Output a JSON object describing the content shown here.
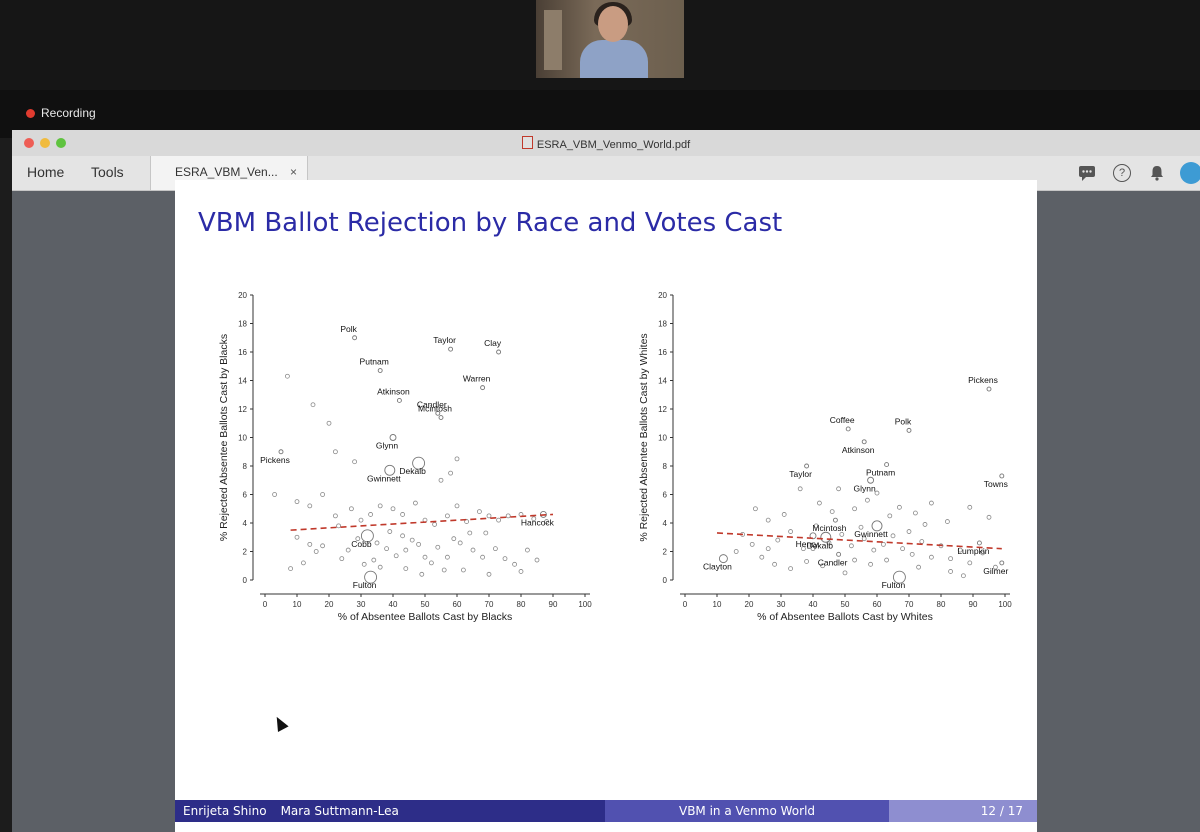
{
  "zoom": {
    "recording_label": "Recording"
  },
  "window": {
    "doc_title": "ESRA_VBM_Venmo_World.pdf",
    "menu": {
      "home": "Home",
      "tools": "Tools"
    },
    "tab": {
      "label": "ESRA_VBM_Ven...",
      "close": "×"
    },
    "icons": [
      "comment-icon",
      "help-icon",
      "bell-icon",
      "avatar"
    ]
  },
  "slide": {
    "title": "VBM Ballot Rejection by Race and Votes Cast",
    "footer": {
      "author1": "Enrijeta Shino",
      "author2": "Mara Suttmann-Lea",
      "center": "VBM in a Venmo World",
      "page": "12 / 17"
    }
  },
  "colors": {
    "title": "#2b2ba6",
    "footer_dark": "#2d2d88",
    "footer_mid": "#5151b0",
    "footer_light": "#8e8ed0",
    "trend": "#c0392b"
  },
  "chart_data": [
    {
      "type": "scatter",
      "title": "",
      "xlabel": "% of Absentee Ballots Cast by Blacks",
      "ylabel": "% Rejected Absentee Ballots Cast by Blacks",
      "xlim": [
        0,
        100
      ],
      "ylim": [
        0,
        20
      ],
      "xticks": [
        0,
        10,
        20,
        30,
        40,
        50,
        60,
        70,
        80,
        90,
        100
      ],
      "yticks": [
        0,
        2,
        4,
        6,
        8,
        10,
        12,
        14,
        16,
        18,
        20
      ],
      "trend": {
        "x": [
          8,
          90
        ],
        "y": [
          3.5,
          4.6
        ]
      },
      "labeled_points": [
        {
          "label": "Polk",
          "x": 28,
          "y": 17,
          "s": 2
        },
        {
          "label": "Taylor",
          "x": 58,
          "y": 16.2,
          "s": 2
        },
        {
          "label": "Clay",
          "x": 73,
          "y": 16,
          "s": 2
        },
        {
          "label": "Putnam",
          "x": 36,
          "y": 14.7,
          "s": 2
        },
        {
          "label": "Atkinson",
          "x": 42,
          "y": 12.6,
          "s": 2
        },
        {
          "label": "Warren",
          "x": 68,
          "y": 13.5,
          "s": 2
        },
        {
          "label": "Candler",
          "x": 54,
          "y": 11.7,
          "s": 2
        },
        {
          "label": "Mcintosh",
          "x": 55,
          "y": 11.4,
          "s": 2
        },
        {
          "label": "Glynn",
          "x": 40,
          "y": 10,
          "s": 3
        },
        {
          "label": "Pickens",
          "x": 5,
          "y": 9,
          "s": 2
        },
        {
          "label": "Gwinnett",
          "x": 39,
          "y": 7.7,
          "s": 5
        },
        {
          "label": "Dekalb",
          "x": 48,
          "y": 8.2,
          "s": 6
        },
        {
          "label": "Hancock",
          "x": 87,
          "y": 4.6,
          "s": 3
        },
        {
          "label": "Cobb",
          "x": 32,
          "y": 3.1,
          "s": 6
        },
        {
          "label": "Fulton",
          "x": 33,
          "y": 0.2,
          "s": 6
        }
      ],
      "points": [
        [
          7,
          14.3
        ],
        [
          15,
          12.3
        ],
        [
          20,
          11
        ],
        [
          22,
          9
        ],
        [
          28,
          8.3
        ],
        [
          55,
          7
        ],
        [
          60,
          8.5
        ],
        [
          58,
          7.5
        ],
        [
          18,
          6
        ],
        [
          3,
          6
        ],
        [
          10,
          5.5
        ],
        [
          14,
          5.2
        ],
        [
          22,
          4.5
        ],
        [
          27,
          5
        ],
        [
          30,
          4.2
        ],
        [
          33,
          4.6
        ],
        [
          36,
          5.2
        ],
        [
          40,
          5
        ],
        [
          43,
          4.6
        ],
        [
          47,
          5.4
        ],
        [
          50,
          4.2
        ],
        [
          53,
          3.9
        ],
        [
          57,
          4.5
        ],
        [
          60,
          5.2
        ],
        [
          63,
          4.1
        ],
        [
          67,
          4.8
        ],
        [
          70,
          4.5
        ],
        [
          73,
          4.2
        ],
        [
          76,
          4.5
        ],
        [
          80,
          4.6
        ],
        [
          84,
          4.3
        ],
        [
          88,
          4.1
        ],
        [
          10,
          3
        ],
        [
          14,
          2.5
        ],
        [
          18,
          2.4
        ],
        [
          26,
          2.1
        ],
        [
          29,
          2.9
        ],
        [
          35,
          2.6
        ],
        [
          38,
          2.2
        ],
        [
          41,
          1.7
        ],
        [
          44,
          2.1
        ],
        [
          48,
          2.5
        ],
        [
          50,
          1.6
        ],
        [
          54,
          2.3
        ],
        [
          57,
          1.6
        ],
        [
          61,
          2.6
        ],
        [
          65,
          2.1
        ],
        [
          68,
          1.6
        ],
        [
          72,
          2.2
        ],
        [
          75,
          1.5
        ],
        [
          78,
          1.1
        ],
        [
          82,
          2.1
        ],
        [
          85,
          1.4
        ],
        [
          12,
          1.2
        ],
        [
          8,
          0.8
        ],
        [
          24,
          1.5
        ],
        [
          36,
          0.9
        ],
        [
          44,
          0.8
        ],
        [
          52,
          1.2
        ],
        [
          62,
          0.7
        ],
        [
          70,
          0.4
        ],
        [
          80,
          0.6
        ],
        [
          31,
          1.1
        ],
        [
          34,
          1.4
        ],
        [
          46,
          2.8
        ],
        [
          59,
          2.9
        ],
        [
          64,
          3.3
        ],
        [
          69,
          3.3
        ],
        [
          39,
          3.4
        ],
        [
          43,
          3.1
        ],
        [
          23,
          3.8
        ],
        [
          16,
          2
        ],
        [
          49,
          0.4
        ],
        [
          56,
          0.7
        ]
      ]
    },
    {
      "type": "scatter",
      "title": "",
      "xlabel": "% of Absentee Ballots Cast by Whites",
      "ylabel": "% Rejected Absentee Ballots Cast by Whites",
      "xlim": [
        0,
        100
      ],
      "ylim": [
        0,
        20
      ],
      "xticks": [
        0,
        10,
        20,
        30,
        40,
        50,
        60,
        70,
        80,
        90,
        100
      ],
      "yticks": [
        0,
        2,
        4,
        6,
        8,
        10,
        12,
        14,
        16,
        18,
        20
      ],
      "trend": {
        "x": [
          10,
          99
        ],
        "y": [
          3.3,
          2.2
        ]
      },
      "labeled_points": [
        {
          "label": "Pickens",
          "x": 95,
          "y": 13.4,
          "s": 2
        },
        {
          "label": "Coffee",
          "x": 51,
          "y": 10.6,
          "s": 2
        },
        {
          "label": "Polk",
          "x": 70,
          "y": 10.5,
          "s": 2
        },
        {
          "label": "Atkinson",
          "x": 56,
          "y": 9.7,
          "s": 2
        },
        {
          "label": "Taylor",
          "x": 38,
          "y": 8,
          "s": 2
        },
        {
          "label": "Putnam",
          "x": 63,
          "y": 8.1,
          "s": 2
        },
        {
          "label": "Towns",
          "x": 99,
          "y": 7.3,
          "s": 2
        },
        {
          "label": "Glynn",
          "x": 58,
          "y": 7,
          "s": 3
        },
        {
          "label": "Mcintosh",
          "x": 47,
          "y": 4.2,
          "s": 2
        },
        {
          "label": "Gwinnett",
          "x": 60,
          "y": 3.8,
          "s": 5
        },
        {
          "label": "Henry",
          "x": 40,
          "y": 3.1,
          "s": 3
        },
        {
          "label": "Dekalb",
          "x": 44,
          "y": 3,
          "s": 5
        },
        {
          "label": "Lumpkin",
          "x": 92,
          "y": 2.6,
          "s": 2
        },
        {
          "label": "Candler",
          "x": 48,
          "y": 1.8,
          "s": 2
        },
        {
          "label": "Clayton",
          "x": 12,
          "y": 1.5,
          "s": 4
        },
        {
          "label": "Gilmer",
          "x": 99,
          "y": 1.2,
          "s": 2
        },
        {
          "label": "Fulton",
          "x": 67,
          "y": 0.2,
          "s": 6
        }
      ],
      "points": [
        [
          22,
          5
        ],
        [
          26,
          4.2
        ],
        [
          31,
          4.6
        ],
        [
          36,
          6.4
        ],
        [
          42,
          5.4
        ],
        [
          48,
          6.4
        ],
        [
          53,
          5
        ],
        [
          60,
          6.1
        ],
        [
          67,
          5.1
        ],
        [
          72,
          4.7
        ],
        [
          77,
          5.4
        ],
        [
          82,
          4.1
        ],
        [
          89,
          5.1
        ],
        [
          95,
          4.4
        ],
        [
          18,
          3.2
        ],
        [
          21,
          2.5
        ],
        [
          26,
          2.2
        ],
        [
          29,
          2.8
        ],
        [
          33,
          3.4
        ],
        [
          37,
          2.2
        ],
        [
          41,
          3.8
        ],
        [
          45,
          2.6
        ],
        [
          49,
          3.2
        ],
        [
          52,
          2.4
        ],
        [
          56,
          2.9
        ],
        [
          59,
          2.1
        ],
        [
          62,
          2.5
        ],
        [
          65,
          3.1
        ],
        [
          68,
          2.2
        ],
        [
          71,
          1.8
        ],
        [
          74,
          2.7
        ],
        [
          77,
          1.6
        ],
        [
          80,
          2.4
        ],
        [
          83,
          1.5
        ],
        [
          86,
          2.1
        ],
        [
          89,
          1.2
        ],
        [
          93,
          1.9
        ],
        [
          97,
          0.9
        ],
        [
          24,
          1.6
        ],
        [
          28,
          1.1
        ],
        [
          33,
          0.8
        ],
        [
          38,
          1.3
        ],
        [
          43,
          1
        ],
        [
          53,
          1.4
        ],
        [
          58,
          1.1
        ],
        [
          63,
          1.4
        ],
        [
          73,
          0.9
        ],
        [
          83,
          0.6
        ],
        [
          16,
          2
        ],
        [
          55,
          3.7
        ],
        [
          64,
          4.5
        ],
        [
          70,
          3.4
        ],
        [
          75,
          3.9
        ],
        [
          57,
          5.6
        ],
        [
          46,
          4.8
        ],
        [
          40,
          2.2
        ],
        [
          50,
          0.5
        ],
        [
          87,
          0.3
        ]
      ]
    }
  ]
}
